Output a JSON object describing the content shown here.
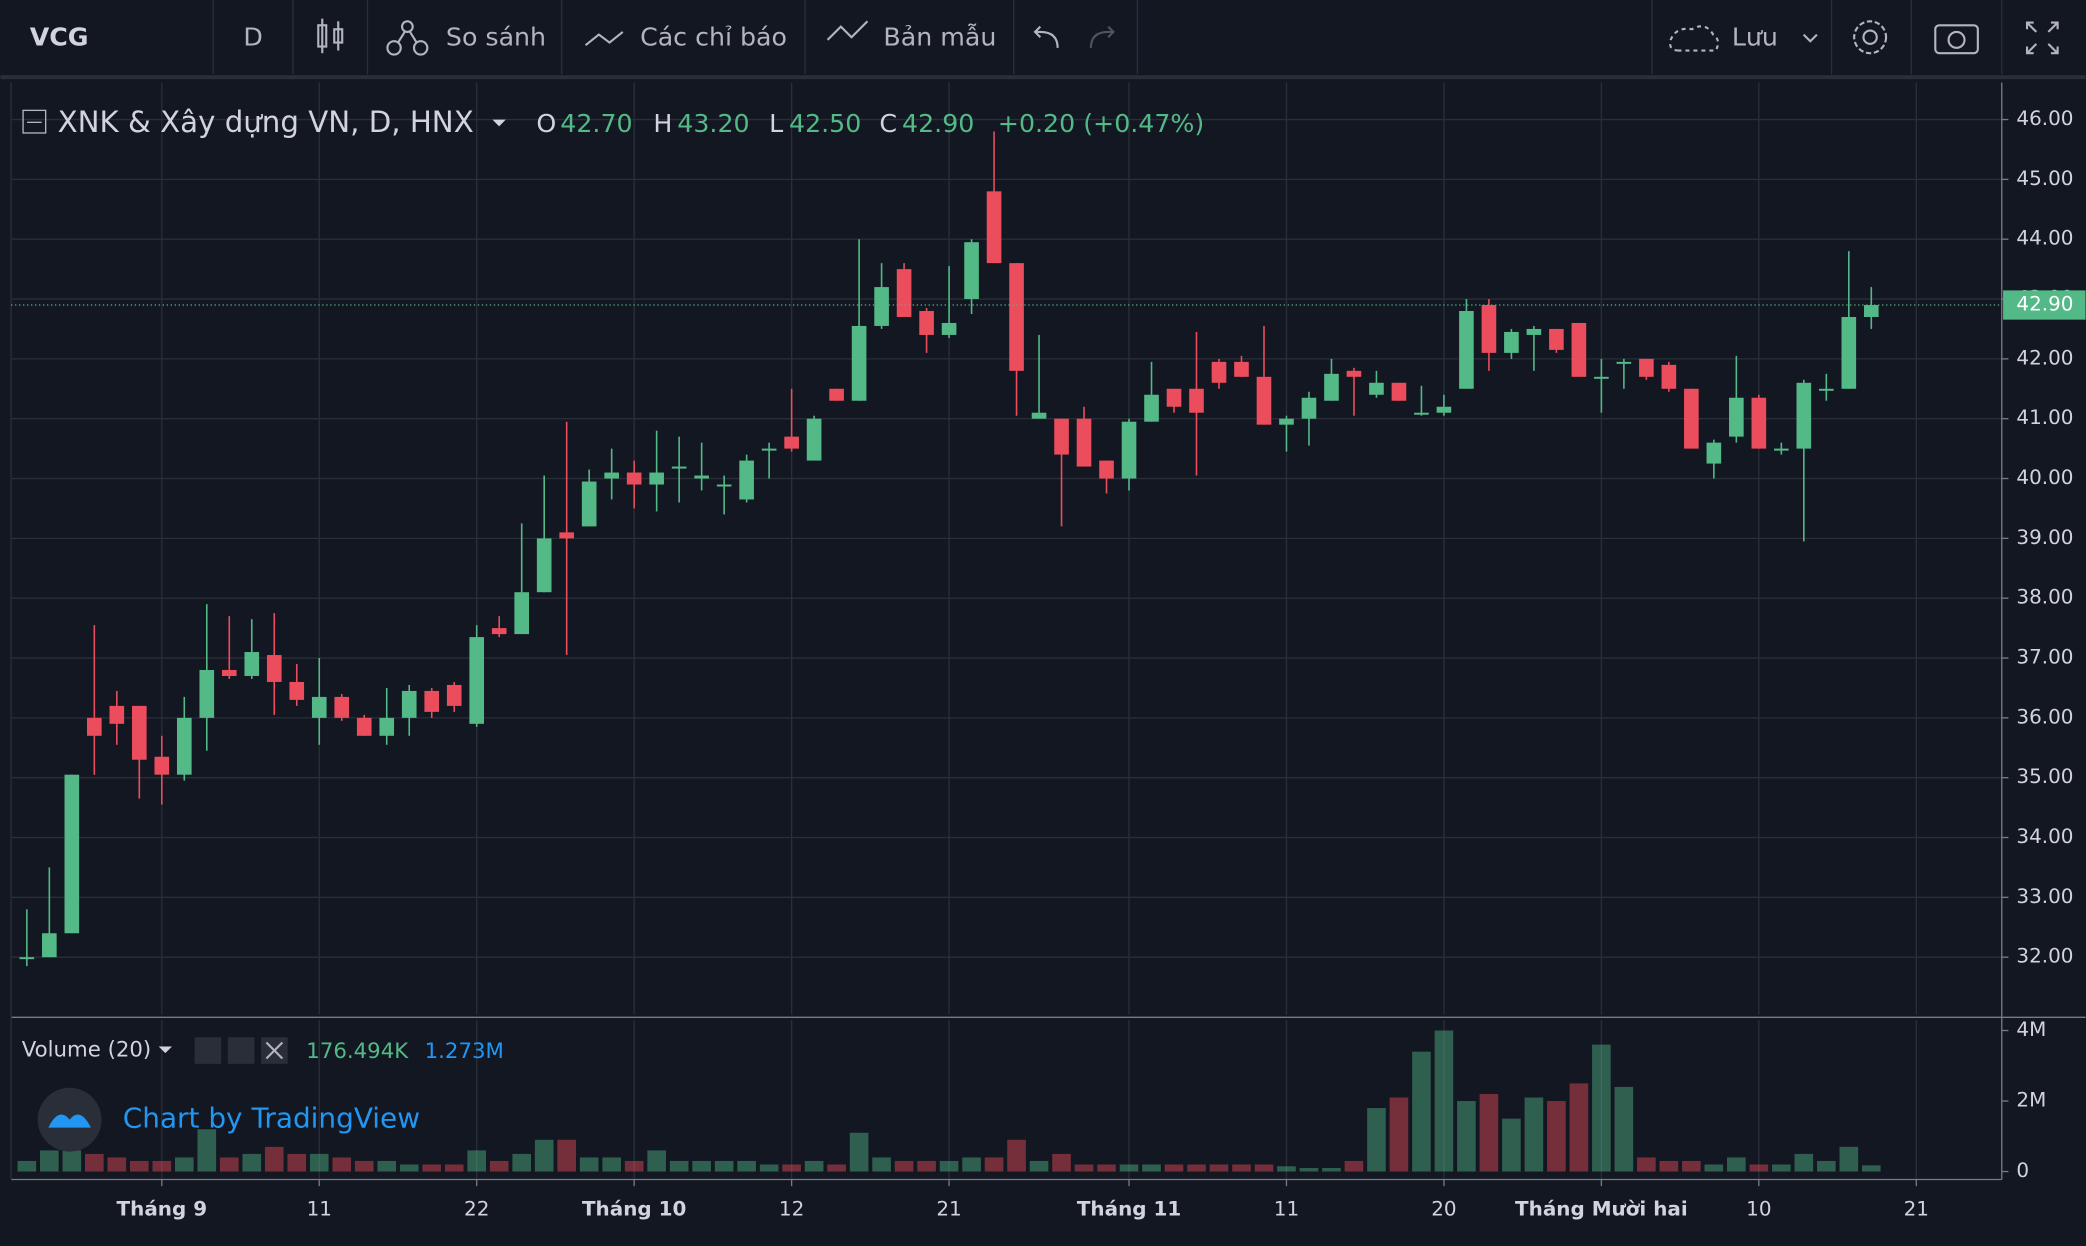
{
  "toolbar": {
    "symbol": "VCG",
    "interval": "D",
    "compare": "So sánh",
    "indicators": "Các chỉ báo",
    "templates": "Bản mẫu",
    "save": "Lưu"
  },
  "chart_data": {
    "type": "candlestick",
    "legend": {
      "name": "XNK & Xây dựng VN, D, HNX",
      "o_label": "O",
      "o": "42.70",
      "h_label": "H",
      "h": "43.20",
      "l_label": "L",
      "l": "42.50",
      "c_label": "C",
      "c": "42.90",
      "change": "+0.20 (+0.47%)"
    },
    "volume_legend": {
      "name": "Volume (20)",
      "last": "176.494K",
      "ma": "1.273M"
    },
    "watermark": "Chart by TradingView",
    "up_color": "#53b987",
    "down_color": "#eb4d5c",
    "open": [
      32.0,
      32.0,
      32.4,
      36.0,
      36.2,
      36.2,
      35.35,
      35.05,
      36.0,
      36.8,
      36.7,
      37.05,
      36.6,
      36.0,
      36.35,
      36.0,
      35.7,
      36.0,
      36.45,
      36.55,
      35.9,
      37.5,
      37.4,
      38.1,
      39.1,
      39.2,
      40.0,
      40.1,
      39.9,
      40.2,
      40.0,
      39.9,
      39.65,
      40.5,
      40.7,
      40.3,
      41.5,
      41.3,
      42.55,
      43.5,
      42.8,
      42.4,
      43.0,
      44.8,
      43.6,
      41.0,
      41.0,
      41.0,
      40.3,
      40.0,
      40.95,
      41.5,
      41.5,
      41.95,
      41.95,
      41.7,
      40.9,
      41.0,
      41.3,
      41.8,
      41.4,
      41.6,
      41.1,
      41.1,
      41.5,
      42.9,
      42.1,
      42.4,
      42.5,
      42.6,
      41.7,
      41.95,
      42.0,
      41.9,
      41.5,
      40.25,
      40.7,
      41.35,
      40.5,
      40.5,
      41.5,
      41.5,
      42.7
    ],
    "high": [
      32.8,
      33.5,
      35.05,
      37.55,
      36.45,
      36.2,
      35.7,
      36.35,
      37.9,
      37.7,
      37.65,
      37.75,
      36.9,
      37.0,
      36.4,
      36.05,
      36.5,
      36.55,
      36.5,
      36.6,
      37.55,
      37.7,
      39.25,
      40.05,
      40.95,
      40.15,
      40.5,
      40.3,
      40.8,
      40.7,
      40.6,
      40.05,
      40.4,
      40.6,
      41.5,
      41.05,
      41.5,
      44.0,
      43.6,
      43.6,
      42.85,
      43.55,
      44.0,
      45.8,
      43.6,
      42.4,
      41.0,
      41.2,
      40.3,
      41.0,
      41.95,
      41.5,
      42.45,
      42.0,
      42.05,
      42.55,
      41.05,
      41.45,
      42.0,
      41.85,
      41.8,
      41.6,
      41.55,
      41.4,
      43.0,
      43.0,
      42.5,
      42.55,
      42.5,
      42.6,
      42.0,
      42.0,
      42.0,
      41.95,
      41.5,
      40.65,
      42.05,
      41.4,
      40.6,
      41.65,
      41.75,
      43.8,
      43.2
    ],
    "low": [
      31.85,
      32.0,
      32.4,
      35.05,
      35.55,
      34.65,
      34.55,
      34.95,
      35.45,
      36.65,
      36.65,
      36.05,
      36.2,
      35.55,
      35.95,
      35.7,
      35.55,
      35.7,
      36.0,
      36.1,
      35.85,
      37.35,
      37.4,
      38.1,
      37.05,
      39.2,
      39.65,
      39.5,
      39.45,
      39.6,
      39.8,
      39.4,
      39.6,
      40.0,
      40.45,
      40.3,
      41.3,
      41.3,
      42.5,
      42.7,
      42.1,
      42.35,
      42.75,
      43.6,
      41.05,
      41.0,
      39.2,
      40.2,
      39.75,
      39.8,
      40.95,
      41.1,
      40.05,
      41.5,
      41.7,
      40.9,
      40.45,
      40.55,
      41.3,
      41.05,
      41.35,
      41.3,
      41.05,
      41.05,
      41.5,
      41.8,
      42.0,
      41.8,
      42.1,
      41.7,
      41.1,
      41.5,
      41.65,
      41.45,
      40.5,
      40.0,
      40.6,
      40.5,
      40.4,
      38.95,
      41.3,
      41.5,
      42.5
    ],
    "close": [
      32.0,
      32.4,
      35.05,
      35.7,
      35.9,
      35.3,
      35.05,
      36.0,
      36.8,
      36.7,
      37.1,
      36.6,
      36.3,
      36.35,
      36.0,
      35.7,
      36.0,
      36.45,
      36.1,
      36.2,
      37.35,
      37.4,
      38.1,
      39.0,
      39.0,
      39.95,
      40.1,
      39.9,
      40.1,
      40.2,
      40.05,
      39.9,
      40.3,
      40.5,
      40.5,
      41.0,
      41.3,
      42.55,
      43.2,
      42.7,
      42.4,
      42.6,
      43.95,
      43.6,
      41.8,
      41.1,
      40.4,
      40.2,
      40.0,
      40.95,
      41.4,
      41.2,
      41.1,
      41.6,
      41.7,
      40.9,
      41.0,
      41.35,
      41.75,
      41.7,
      41.6,
      41.3,
      41.1,
      41.2,
      42.8,
      42.1,
      42.45,
      42.5,
      42.15,
      41.7,
      41.7,
      41.95,
      41.7,
      41.5,
      40.5,
      40.6,
      41.35,
      40.5,
      40.5,
      41.6,
      41.5,
      42.7,
      42.9
    ],
    "volume": [
      300000,
      600000,
      600000,
      500000,
      400000,
      300000,
      300000,
      400000,
      1200000,
      400000,
      500000,
      700000,
      500000,
      500000,
      400000,
      300000,
      300000,
      200000,
      200000,
      200000,
      600000,
      300000,
      500000,
      900000,
      900000,
      400000,
      400000,
      300000,
      600000,
      300000,
      300000,
      300000,
      300000,
      200000,
      200000,
      300000,
      200000,
      1100000,
      400000,
      300000,
      300000,
      300000,
      400000,
      400000,
      900000,
      300000,
      500000,
      200000,
      200000,
      200000,
      200000,
      200000,
      200000,
      200000,
      200000,
      200000,
      150000,
      100000,
      100000,
      300000,
      1800000,
      2100000,
      3400000,
      4000000,
      2000000,
      2200000,
      1500000,
      2100000,
      2000000,
      2500000,
      3600000,
      2400000,
      400000,
      300000,
      300000,
      200000,
      400000,
      200000,
      200000,
      500000,
      300000,
      700000,
      176494
    ],
    "xlim": [
      -0.7,
      87.8
    ],
    "xticks": [
      {
        "value": 6,
        "label": "Tháng 9"
      },
      {
        "value": 13,
        "label": "11"
      },
      {
        "value": 20,
        "label": "22"
      },
      {
        "value": 27,
        "label": "Tháng 10"
      },
      {
        "value": 34,
        "label": "12"
      },
      {
        "value": 41,
        "label": "21"
      },
      {
        "value": 49,
        "label": "Tháng 11"
      },
      {
        "value": 56,
        "label": "11"
      },
      {
        "value": 63,
        "label": "20"
      },
      {
        "value": 70,
        "label": "Tháng Mười hai"
      },
      {
        "value": 77,
        "label": "10"
      },
      {
        "value": 84,
        "label": "21"
      }
    ],
    "ylim": [
      31.04,
      46.62
    ],
    "yticks": [
      {
        "value": 32,
        "label": "32.00"
      },
      {
        "value": 33,
        "label": "33.00"
      },
      {
        "value": 34,
        "label": "34.00"
      },
      {
        "value": 35,
        "label": "35.00"
      },
      {
        "value": 36,
        "label": "36.00"
      },
      {
        "value": 37,
        "label": "37.00"
      },
      {
        "value": 38,
        "label": "38.00"
      },
      {
        "value": 39,
        "label": "39.00"
      },
      {
        "value": 40,
        "label": "40.00"
      },
      {
        "value": 41,
        "label": "41.00"
      },
      {
        "value": 42,
        "label": "42.00"
      },
      {
        "value": 43,
        "label": "43.00"
      },
      {
        "value": 44,
        "label": "44.00"
      },
      {
        "value": 45,
        "label": "45.00"
      },
      {
        "value": 46,
        "label": "46.00"
      }
    ],
    "last_price": {
      "value": 42.9,
      "label": "42.90"
    },
    "vlim": [
      -226000,
      4300000
    ],
    "vticks": [
      0,
      {
        "value": 2000000,
        "label": "2M"
      },
      {
        "value": 4000000,
        "label": "4M"
      }
    ],
    "grid": true
  }
}
